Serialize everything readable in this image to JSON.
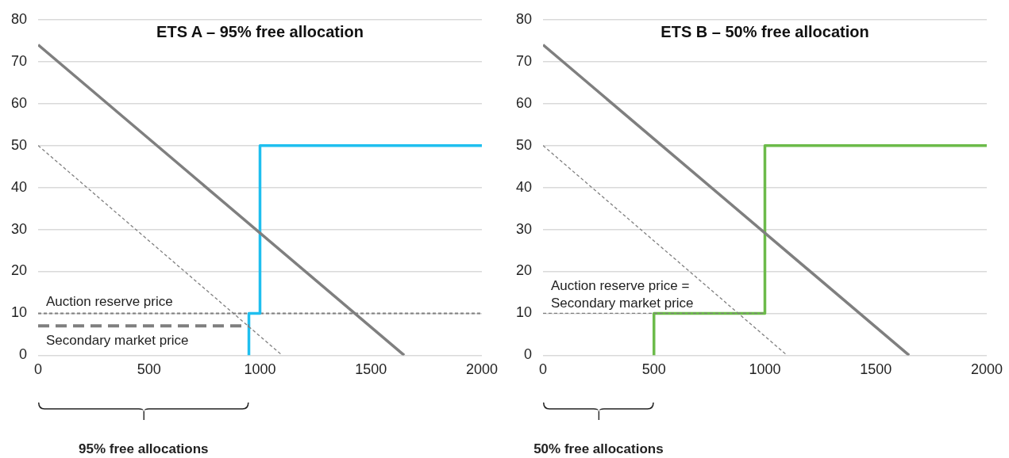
{
  "chart_data": [
    {
      "type": "line",
      "title": "ETS A – 95% free allocation",
      "xlim": [
        0,
        2000
      ],
      "xticks": [
        0,
        500,
        1000,
        1500,
        2000
      ],
      "ylim": [
        0,
        80
      ],
      "yticks": [
        0,
        10,
        20,
        30,
        40,
        50,
        60,
        70,
        80
      ],
      "grid": "y",
      "marker": "none",
      "series": [
        {
          "color": "#7f7f7f",
          "x": [
            0,
            1650
          ],
          "values": [
            74,
            0
          ]
        },
        {
          "color": "#7f7f7f",
          "x": [
            0,
            1100
          ],
          "values": [
            50,
            0
          ],
          "line_style": "dotted"
        },
        {
          "color": "#7f7f7f",
          "x": [
            0,
            950
          ],
          "values": [
            7,
            7
          ],
          "line_style": "dashed"
        },
        {
          "color": "#1fbfef",
          "x": [
            950,
            950,
            1000,
            1000,
            2000
          ],
          "values": [
            0,
            10,
            10,
            50,
            50
          ]
        }
      ],
      "ref_lines": [
        {
          "axis": "y",
          "value": 10,
          "label": "Auction reserve price",
          "color": "#7f7f7f",
          "line_style": "dotted"
        }
      ],
      "annotations": [
        {
          "text": "Secondary market price",
          "x": 0,
          "y": 7
        },
        "95% free allocations"
      ]
    },
    {
      "type": "line",
      "title": "ETS B – 50% free allocation",
      "xlim": [
        0,
        2000
      ],
      "xticks": [
        0,
        500,
        1000,
        1500,
        2000
      ],
      "ylim": [
        0,
        80
      ],
      "yticks": [
        0,
        10,
        20,
        30,
        40,
        50,
        60,
        70,
        80
      ],
      "grid": "y",
      "marker": "none",
      "series": [
        {
          "color": "#7f7f7f",
          "x": [
            0,
            1650
          ],
          "values": [
            74,
            0
          ]
        },
        {
          "color": "#7f7f7f",
          "x": [
            0,
            1100
          ],
          "values": [
            50,
            0
          ],
          "line_style": "dotted"
        },
        {
          "color": "#7f7f7f",
          "x": [
            0,
            1000
          ],
          "values": [
            10,
            10
          ],
          "line_style": "dotted"
        },
        {
          "color": "#6cbb4a",
          "x": [
            500,
            500,
            1000,
            1000,
            2000
          ],
          "values": [
            0,
            10,
            10,
            50,
            50
          ]
        }
      ],
      "annotations": [
        {
          "text": "Auction reserve price = Secondary market price",
          "x": 0,
          "y": 10
        },
        "50% free allocations"
      ]
    }
  ]
}
